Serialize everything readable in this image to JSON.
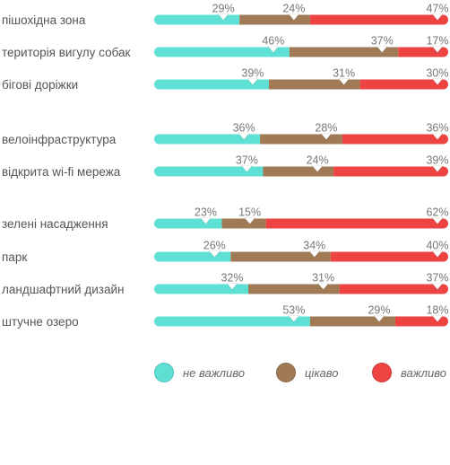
{
  "chart_data": {
    "type": "bar",
    "stacked": "horizontal-100%",
    "categories": [
      "пішохідна зона",
      "територія вигулу собак",
      "бігові доріжки",
      "велоінфраструктура",
      "відкрита wi-fi мережа",
      "зелені насадження",
      "парк",
      "ландшафтний дизайн",
      "штучне озеро"
    ],
    "groups": [
      [
        0,
        1,
        2
      ],
      [
        3,
        4
      ],
      [
        5,
        6,
        7,
        8
      ]
    ],
    "series": [
      {
        "name": "не важливо",
        "color": "#5fe0d5",
        "values": [
          29,
          46,
          39,
          36,
          37,
          23,
          26,
          32,
          53
        ]
      },
      {
        "name": "цікаво",
        "color": "#a07a55",
        "values": [
          24,
          37,
          31,
          28,
          24,
          15,
          34,
          31,
          29
        ]
      },
      {
        "name": "важливо",
        "color": "#ee4343",
        "values": [
          47,
          17,
          30,
          36,
          39,
          62,
          40,
          37,
          18
        ]
      }
    ],
    "value_suffix": "%",
    "legend_position": "bottom"
  },
  "legend": {
    "not_important": "не важливо",
    "interesting": "цікаво",
    "important": "важливо"
  }
}
